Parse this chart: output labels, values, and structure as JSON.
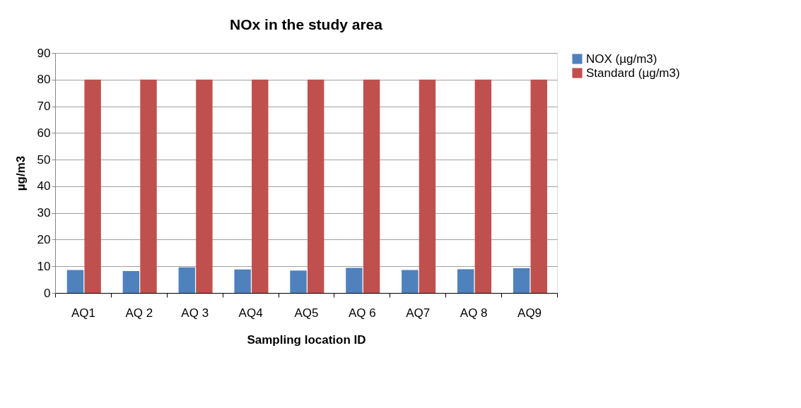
{
  "chart_data": {
    "type": "bar",
    "title": "NOx in the study area",
    "xlabel": "Sampling location ID",
    "ylabel": "µg/m3",
    "categories": [
      "AQ1",
      "AQ 2",
      "AQ 3",
      "AQ4",
      "AQ5",
      "AQ 6",
      "AQ7",
      "AQ 8",
      "AQ9"
    ],
    "series": [
      {
        "name": "NOX (µg/m3)",
        "color": "#4f81bd",
        "values": [
          8.6,
          8.2,
          9.6,
          8.8,
          8.4,
          9.4,
          8.6,
          8.9,
          9.3
        ]
      },
      {
        "name": "Standard (µg/m3)",
        "color": "#c0504d",
        "values": [
          80,
          80,
          80,
          80,
          80,
          80,
          80,
          80,
          80
        ]
      }
    ],
    "ylim": [
      0,
      90
    ],
    "yticks": [
      0,
      10,
      20,
      30,
      40,
      50,
      60,
      70,
      80,
      90
    ],
    "grid": "y",
    "legend": "right"
  }
}
